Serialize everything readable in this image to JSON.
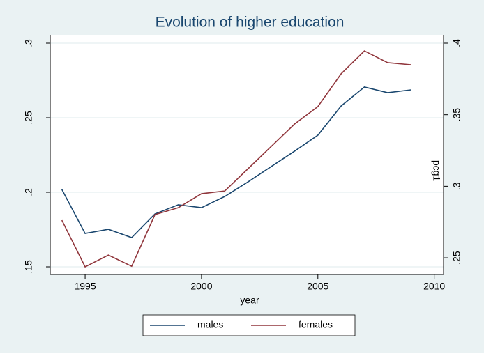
{
  "chart_data": {
    "type": "line",
    "title": "Evolution of higher education",
    "x_label": "year",
    "y2_label": "pcg1",
    "x": [
      1994,
      1995,
      1996,
      1997,
      1998,
      1999,
      2000,
      2001,
      2002,
      2003,
      2004,
      2005,
      2006,
      2007,
      2008,
      2009
    ],
    "series": [
      {
        "name": "males",
        "color": "#1a476f",
        "axis": "y",
        "values": [
          0.2019,
          0.1724,
          0.1752,
          0.1696,
          0.1855,
          0.1916,
          0.1897,
          0.1972,
          0.207,
          0.2173,
          0.2276,
          0.2383,
          0.2579,
          0.2706,
          0.2668,
          0.2687
        ]
      },
      {
        "name": "females",
        "color": "#90353b",
        "axis": "y2",
        "values": [
          0.2763,
          0.2437,
          0.2519,
          0.2441,
          0.2802,
          0.285,
          0.2948,
          0.2967,
          0.3123,
          0.3279,
          0.3435,
          0.3557,
          0.3786,
          0.3946,
          0.3864,
          0.3849
        ]
      }
    ],
    "xlim": [
      1993.5,
      2010.4
    ],
    "xticks": [
      1995,
      2000,
      2005,
      2010
    ],
    "ylim": [
      0.15,
      0.3
    ],
    "yticks": [
      {
        "value": 0.15,
        "label": ".15"
      },
      {
        "value": 0.2,
        "label": ".2"
      },
      {
        "value": 0.25,
        "label": ".25"
      },
      {
        "value": 0.3,
        "label": ".3"
      }
    ],
    "y2lim": [
      0.2437,
      0.4
    ],
    "y2ticks": [
      {
        "value": 0.25,
        "label": ".25"
      },
      {
        "value": 0.3,
        "label": ".3"
      },
      {
        "value": 0.35,
        "label": ".35"
      },
      {
        "value": 0.4,
        "label": ".4"
      }
    ],
    "grid": true,
    "legend": "bottom"
  }
}
